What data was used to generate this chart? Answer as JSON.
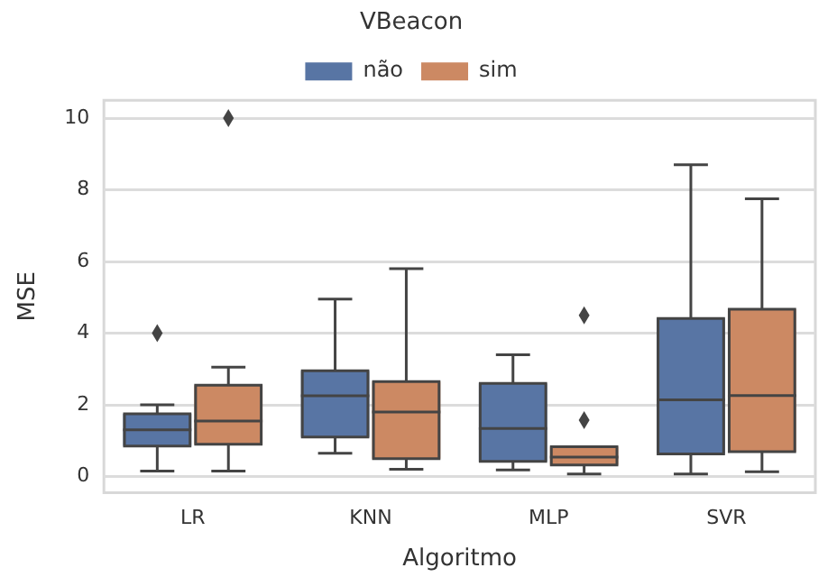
{
  "chart_data": {
    "type": "box",
    "xlabel": "Algoritmo",
    "ylabel": "MSE",
    "legend_title": "VBeacon",
    "categories": [
      "LR",
      "KNN",
      "MLP",
      "SVR"
    ],
    "series": [
      {
        "name": "não",
        "color": "#5875a4",
        "boxes": [
          {
            "low": 0.15,
            "q1": 0.85,
            "median": 1.3,
            "q3": 1.75,
            "high": 2.0,
            "outliers": [
              4.0
            ]
          },
          {
            "low": 0.65,
            "q1": 1.1,
            "median": 2.25,
            "q3": 2.95,
            "high": 4.95
          },
          {
            "low": 0.18,
            "q1": 0.42,
            "median": 1.34,
            "q3": 2.6,
            "high": 3.4
          },
          {
            "low": 0.07,
            "q1": 0.63,
            "median": 2.14,
            "q3": 4.41,
            "high": 8.7
          }
        ]
      },
      {
        "name": "sim",
        "color": "#cc8963",
        "boxes": [
          {
            "low": 0.15,
            "q1": 0.9,
            "median": 1.55,
            "q3": 2.55,
            "high": 3.05,
            "outliers": [
              10.0
            ]
          },
          {
            "low": 0.2,
            "q1": 0.5,
            "median": 1.8,
            "q3": 2.65,
            "high": 5.8
          },
          {
            "low": 0.07,
            "q1": 0.32,
            "median": 0.54,
            "q3": 0.83,
            "high": 0.83,
            "outliers": [
              4.5,
              1.57
            ]
          },
          {
            "low": 0.13,
            "q1": 0.69,
            "median": 2.26,
            "q3": 4.67,
            "high": 7.75
          }
        ]
      }
    ],
    "ylim": [
      -0.45,
      10.5
    ],
    "yticks": [
      0,
      2,
      4,
      6,
      8,
      10
    ],
    "grid": "y",
    "legend": "top"
  }
}
